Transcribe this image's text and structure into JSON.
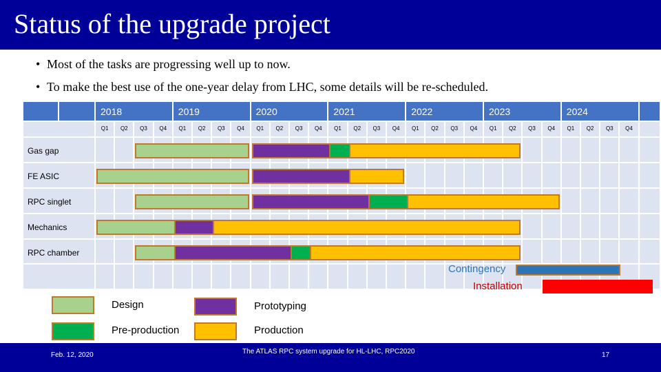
{
  "title": "Status of the upgrade project",
  "bullets": [
    "Most of the tasks are progressing well up to now.",
    "To make the best use of the one-year delay from LHC, some details will be re-scheduled."
  ],
  "bullet_symbol": "•",
  "gantt": {
    "years": [
      "2018",
      "2019",
      "2020",
      "2021",
      "2022",
      "2023",
      "2024"
    ],
    "quarters": [
      "Q1",
      "Q2",
      "Q3",
      "Q4"
    ],
    "rows": [
      {
        "label": "Gas gap",
        "phases": [
          {
            "phase": "Design",
            "start": "2018 Q3",
            "end": "2019 Q4"
          },
          {
            "phase": "Prototyping",
            "start": "2020 Q1",
            "end": "2021 Q1"
          },
          {
            "phase": "Pre-production",
            "start": "2021 Q1",
            "end": "2021 Q2"
          },
          {
            "phase": "Production",
            "start": "2021 Q2",
            "end": "2023 Q2"
          }
        ]
      },
      {
        "label": "FE ASIC",
        "phases": [
          {
            "phase": "Design",
            "start": "2018 Q1",
            "end": "2019 Q4"
          },
          {
            "phase": "Prototyping",
            "start": "2020 Q1",
            "end": "2021 Q2"
          },
          {
            "phase": "Production",
            "start": "2021 Q2",
            "end": "2021 Q4"
          }
        ]
      },
      {
        "label": "RPC singlet",
        "phases": [
          {
            "phase": "Design",
            "start": "2018 Q3",
            "end": "2019 Q4"
          },
          {
            "phase": "Prototyping",
            "start": "2020 Q1",
            "end": "2021 Q3"
          },
          {
            "phase": "Pre-production",
            "start": "2021 Q3",
            "end": "2022 Q1"
          },
          {
            "phase": "Production",
            "start": "2022 Q1",
            "end": "2023 Q4"
          }
        ]
      },
      {
        "label": "Mechanics",
        "phases": [
          {
            "phase": "Design",
            "start": "2018 Q1",
            "end": "2019 Q1"
          },
          {
            "phase": "Prototyping",
            "start": "2019 Q1",
            "end": "2019 Q3"
          },
          {
            "phase": "Production",
            "start": "2019 Q3",
            "end": "2023 Q2"
          }
        ]
      },
      {
        "label": "RPC chamber",
        "phases": [
          {
            "phase": "Design",
            "start": "2018 Q3",
            "end": "2019 Q1"
          },
          {
            "phase": "Prototyping",
            "start": "2019 Q1",
            "end": "2020 Q3"
          },
          {
            "phase": "Pre-production",
            "start": "2020 Q3",
            "end": "2020 Q4"
          },
          {
            "phase": "Production",
            "start": "2020 Q4",
            "end": "2023 Q2"
          }
        ]
      }
    ],
    "extra_legend": [
      {
        "label": "Contingency",
        "color": "#2e75b6"
      },
      {
        "label": "Installation",
        "color": "#ff0000"
      }
    ]
  },
  "legend": [
    {
      "label": "Design",
      "color": "#a9d18e"
    },
    {
      "label": "Prototyping",
      "color": "#7030a0"
    },
    {
      "label": "Pre-production",
      "color": "#00b050"
    },
    {
      "label": "Production",
      "color": "#ffc000"
    }
  ],
  "colors": {
    "title_bar": "#000099",
    "header_fill": "#4472c4",
    "grid_fill": "#dde3f0",
    "bar_border": "#c0782a",
    "legend_text_blue": "#2e75b6",
    "legend_text_red": "#c00000"
  },
  "footer": {
    "date": "Feb. 12, 2020",
    "center": "The ATLAS RPC system upgrade for HL-LHC, RPC2020",
    "page": "17"
  }
}
